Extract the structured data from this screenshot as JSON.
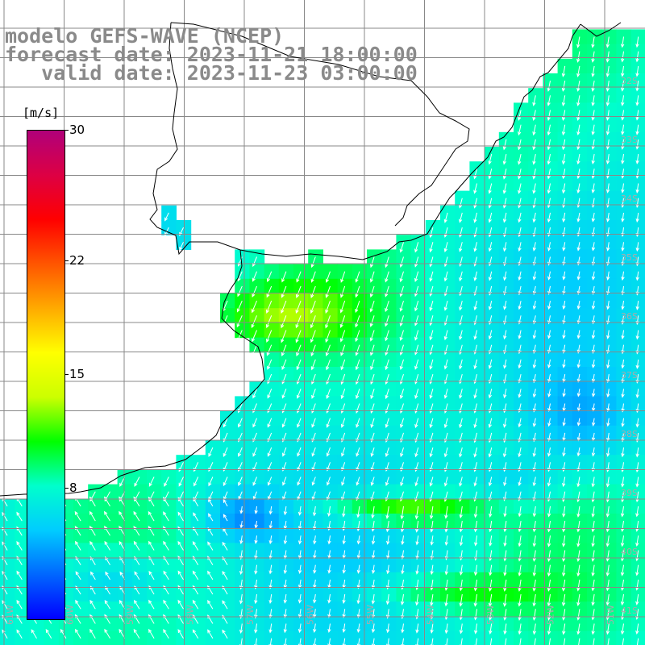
{
  "title": {
    "line1": "modelo GEFS-WAVE (NCEP)",
    "line2": "forecast date: 2023-11-21 18:00:00",
    "line3": "   valid date: 2023-11-23 03:00:00"
  },
  "colorbar": {
    "unit": "[m/s]",
    "min": 0,
    "max": 30,
    "ticks": [
      "30",
      "22",
      "15",
      "8"
    ],
    "tick_values": [
      30,
      22,
      15,
      8
    ],
    "colors": [
      "#0000ff",
      "#0066ff",
      "#00ccff",
      "#00ffcc",
      "#00ff00",
      "#ccff00",
      "#ffff00",
      "#ffaa00",
      "#ff5500",
      "#ff0000",
      "#dd0044",
      "#b0007a"
    ]
  },
  "lat_labels": [
    "32S",
    "33S",
    "34S",
    "35S",
    "36S",
    "37S",
    "38S",
    "39S",
    "40S",
    "41S"
  ],
  "lon_labels": [
    "61W",
    "60W",
    "59W",
    "58W",
    "57W",
    "56W",
    "55W",
    "54W",
    "53W",
    "52W",
    "51W"
  ],
  "chart_data": {
    "type": "heatmap",
    "variable": "wind speed",
    "unit": "m/s",
    "lon_range": [
      -61.5,
      -51.0
    ],
    "lat_range": [
      -41.5,
      -31.5
    ],
    "color_range": [
      0,
      30
    ]
  }
}
